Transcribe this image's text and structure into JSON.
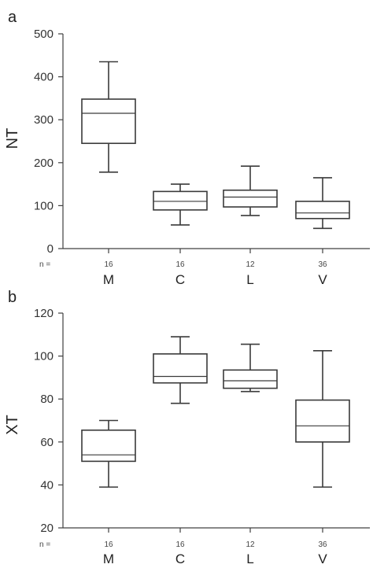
{
  "chart_data": [
    {
      "type": "box",
      "panel_label": "a",
      "ylabel": "NT",
      "ylim": [
        0,
        500
      ],
      "yticks": [
        "0",
        "100",
        "200",
        "300",
        "400",
        "500"
      ],
      "n_prefix": "n =",
      "categories": [
        "M",
        "C",
        "L",
        "V"
      ],
      "n": [
        "16",
        "16",
        "12",
        "36"
      ],
      "boxes": [
        {
          "min": 178,
          "q1": 245,
          "median": 315,
          "q3": 348,
          "max": 435
        },
        {
          "min": 55,
          "q1": 90,
          "median": 110,
          "q3": 133,
          "max": 150
        },
        {
          "min": 77,
          "q1": 97,
          "median": 120,
          "q3": 136,
          "max": 192
        },
        {
          "min": 47,
          "q1": 70,
          "median": 83,
          "q3": 110,
          "max": 165
        }
      ],
      "grid": false
    },
    {
      "type": "box",
      "panel_label": "b",
      "ylabel": "XT",
      "ylim": [
        20,
        120
      ],
      "yticks": [
        "20",
        "40",
        "60",
        "80",
        "100",
        "120"
      ],
      "n_prefix": "n =",
      "categories": [
        "M",
        "C",
        "L",
        "V"
      ],
      "n": [
        "16",
        "16",
        "12",
        "36"
      ],
      "boxes": [
        {
          "min": 39,
          "q1": 51,
          "median": 54,
          "q3": 65.5,
          "max": 70
        },
        {
          "min": 78,
          "q1": 87.5,
          "median": 90.5,
          "q3": 101,
          "max": 109
        },
        {
          "min": 83.5,
          "q1": 85,
          "median": 88.5,
          "q3": 93.5,
          "max": 105.5
        },
        {
          "min": 39,
          "q1": 60,
          "median": 67.5,
          "q3": 79.5,
          "max": 102.5
        }
      ],
      "grid": false
    }
  ]
}
